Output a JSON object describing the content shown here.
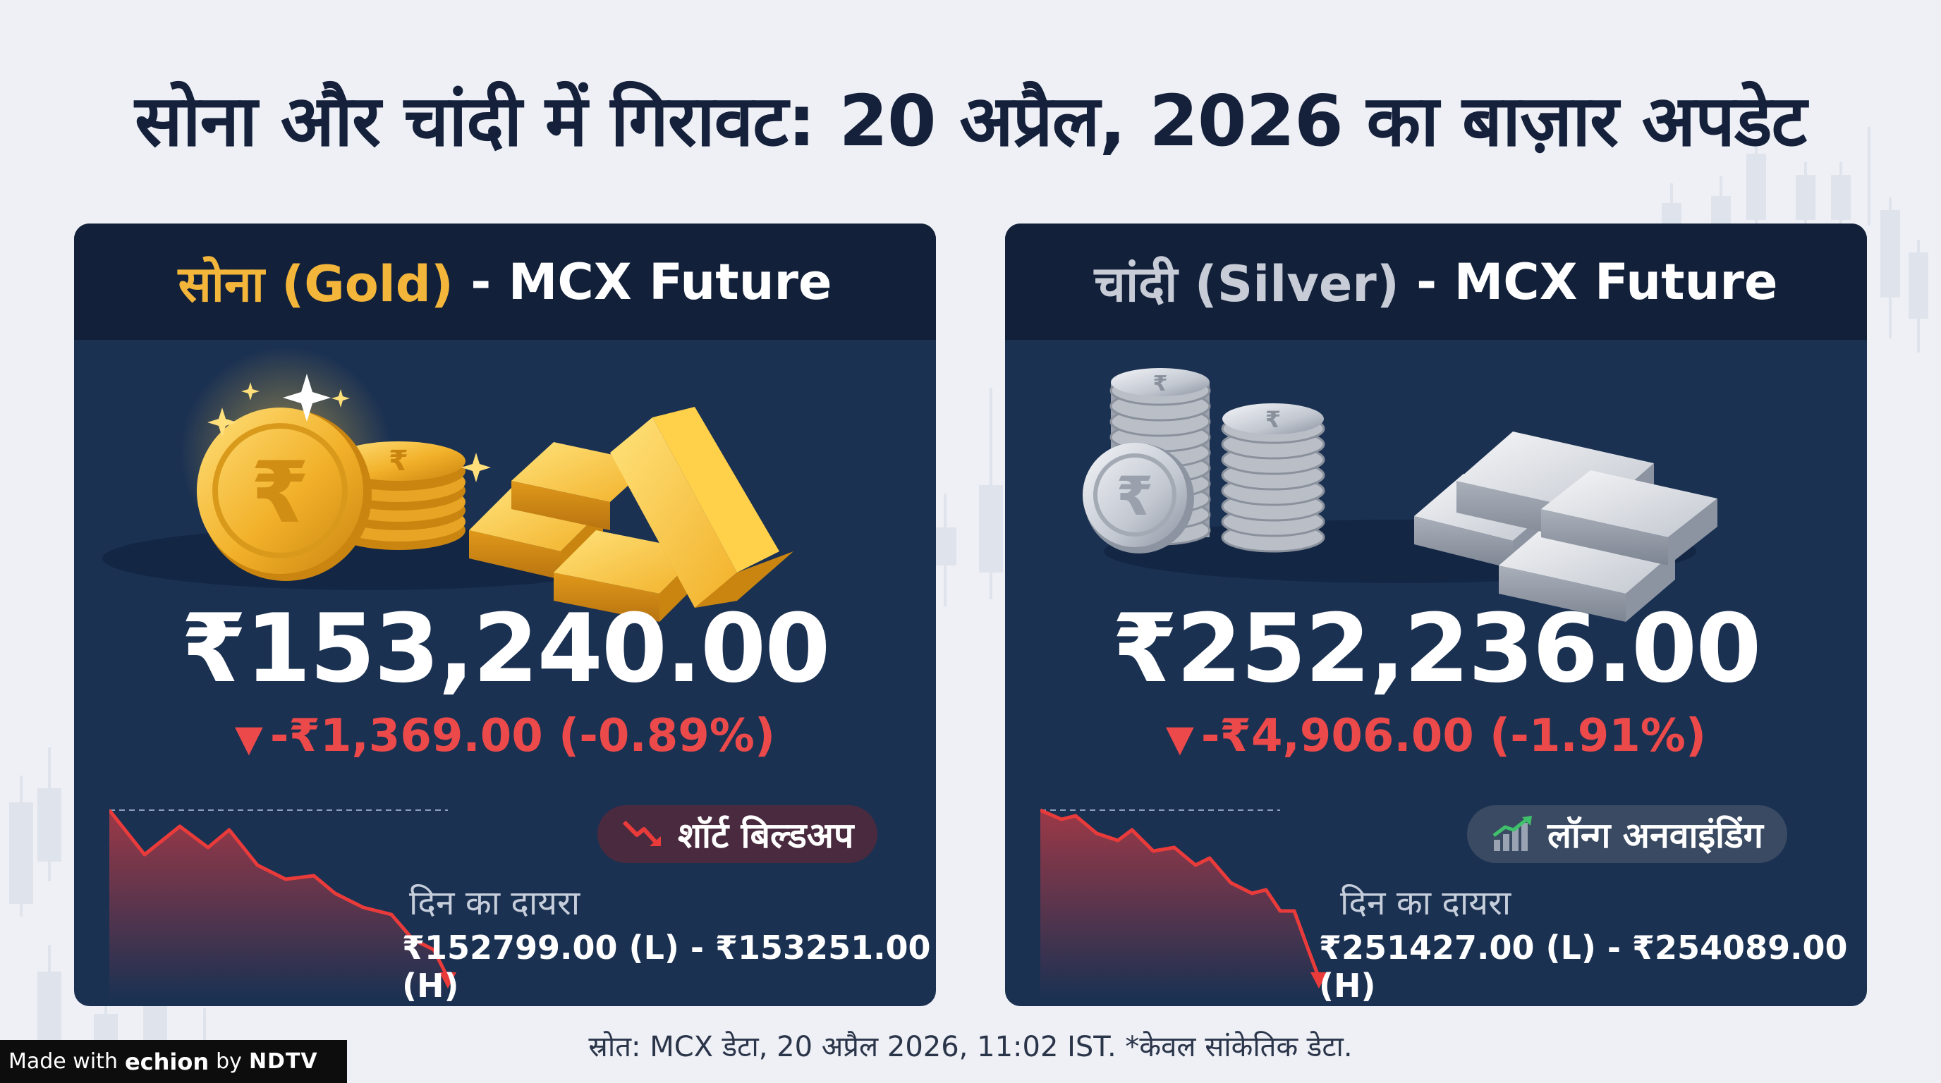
{
  "title": "सोना और चांदी में गिरावट: 20 अप्रैल, 2026 का बाज़ार अपडेट",
  "gold": {
    "header_highlight": "सोना (Gold)",
    "header_rest": " - MCX Future",
    "price": "₹153,240.00",
    "change": "-₹1,369.00 (-0.89%)",
    "badge": "शॉर्ट बिल्डअप",
    "range_label": "दिन का दायरा",
    "range_value": "₹152799.00 (L) - ₹153251.00 (H)"
  },
  "silver": {
    "header_highlight": "चांदी (Silver)",
    "header_rest": " - MCX Future",
    "price": "₹252,236.00",
    "change": "-₹4,906.00 (-1.91%)",
    "badge": "लॉन्ग अनवाइंडिंग",
    "range_label": "दिन का दायरा",
    "range_value": "₹251427.00 (L) - ₹254089.00 (H)"
  },
  "change_icon": "down-triangle",
  "colors": {
    "gold_accent": "#f4b63a",
    "silver_accent": "#c7ccd6",
    "negative": "#ec4a4a",
    "card_bg": "#1b3152",
    "header_bg": "#12203a"
  },
  "footer": "स्रोत: MCX डेटा, 20 अप्रैल 2026, 11:02 IST. *केवल सांकेतिक डेटा.",
  "made_with": {
    "prefix": "Made with",
    "brand": "echion",
    "by": "by",
    "network": "NDTV"
  }
}
